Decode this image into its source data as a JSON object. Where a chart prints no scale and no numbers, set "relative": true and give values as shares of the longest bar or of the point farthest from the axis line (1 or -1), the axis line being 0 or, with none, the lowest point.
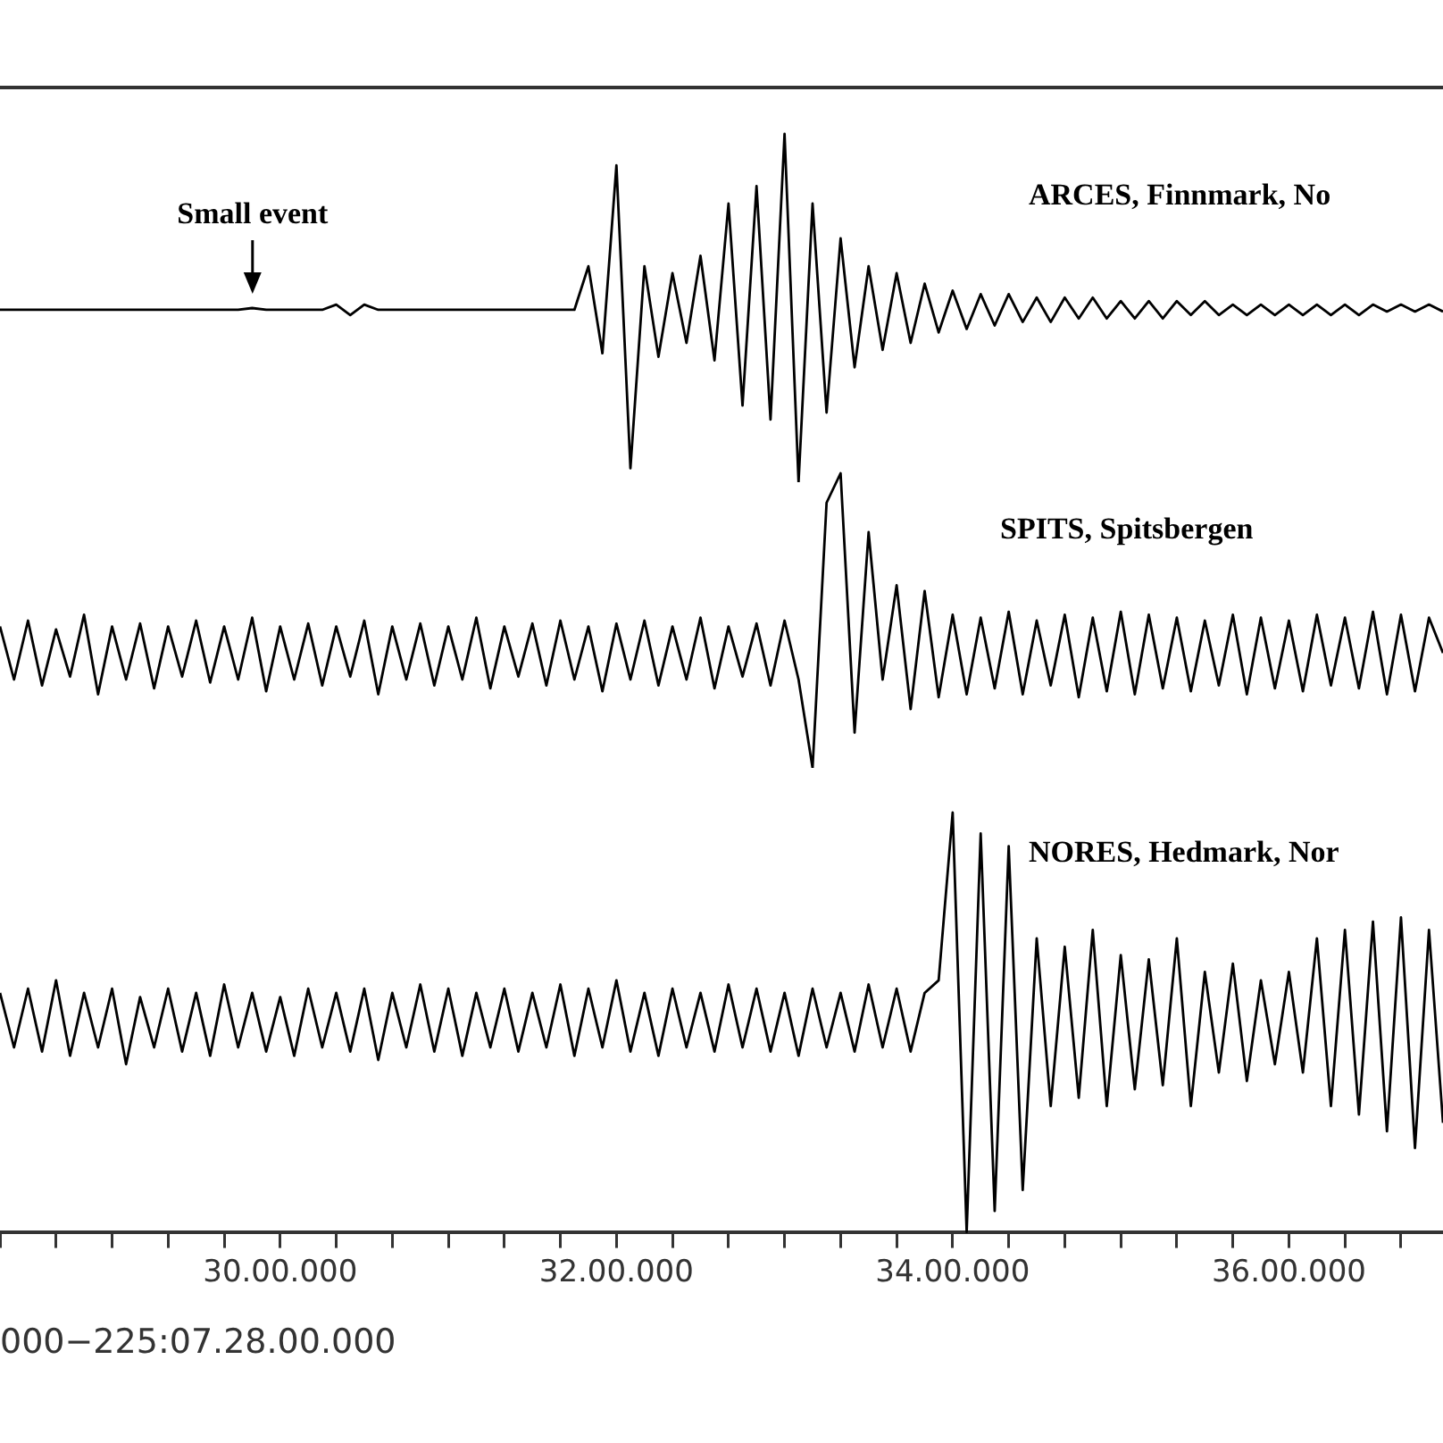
{
  "chart_data": [
    {
      "type": "line",
      "relative": true,
      "tick_labels": false,
      "legend": false,
      "grid": false,
      "marker": "none",
      "annotations": [
        "Small event"
      ],
      "categories": [
        null,
        null,
        null,
        null,
        null,
        null,
        null,
        null,
        null,
        null,
        null,
        null,
        null,
        null,
        null,
        null,
        null,
        null,
        null,
        null,
        "30.00.000",
        null,
        null,
        null,
        null,
        null,
        null,
        null,
        null,
        null,
        null,
        null,
        null,
        null,
        null,
        null,
        null,
        null,
        null,
        null,
        null,
        null,
        null,
        null,
        "32.00.000",
        null,
        null,
        null,
        null,
        null,
        null,
        null,
        null,
        null,
        null,
        null,
        null,
        null,
        null,
        null,
        null,
        null,
        null,
        null,
        null,
        null,
        null,
        null,
        "34.00.000",
        null,
        null,
        null,
        null,
        null,
        null,
        null,
        null,
        null,
        null,
        null,
        null,
        null,
        null,
        null,
        null,
        null,
        null,
        null,
        null,
        null,
        null,
        null,
        "36.00.000",
        null,
        null,
        null,
        null,
        null,
        null,
        null,
        null,
        null,
        null,
        null
      ],
      "series": [
        {
          "name": "ARCES, Finnmark, No",
          "color": "#000000",
          "values": [
            0.495,
            0.495,
            0.495,
            0.495,
            0.495,
            0.495,
            0.495,
            0.495,
            0.495,
            0.495,
            0.495,
            0.495,
            0.495,
            0.495,
            0.495,
            0.495,
            0.495,
            0.495,
            0.5,
            0.495,
            0.495,
            0.495,
            0.495,
            0.495,
            0.51,
            0.48,
            0.51,
            0.495,
            0.495,
            0.495,
            0.495,
            0.495,
            0.495,
            0.495,
            0.495,
            0.495,
            0.495,
            0.495,
            0.495,
            0.495,
            0.495,
            0.495,
            0.62,
            0.37,
            0.91,
            0.04,
            0.62,
            0.36,
            0.6,
            0.4,
            0.65,
            0.35,
            0.8,
            0.22,
            0.85,
            0.18,
            1.0,
            0.0,
            0.8,
            0.2,
            0.7,
            0.33,
            0.62,
            0.38,
            0.6,
            0.4,
            0.57,
            0.43,
            0.55,
            0.44,
            0.54,
            0.45,
            0.54,
            0.46,
            0.53,
            0.46,
            0.53,
            0.47,
            0.53,
            0.47,
            0.52,
            0.47,
            0.52,
            0.47,
            0.52,
            0.48,
            0.52,
            0.48,
            0.51,
            0.48,
            0.51,
            0.48,
            0.51,
            0.48,
            0.51,
            0.48,
            0.51,
            0.48,
            0.51,
            0.49,
            0.51,
            0.49,
            0.51,
            0.49
          ]
        }
      ]
    },
    {
      "type": "line",
      "relative": true,
      "tick_labels": false,
      "legend": false,
      "grid": false,
      "marker": "none",
      "categories": [
        null,
        null,
        null,
        null,
        null,
        null,
        null,
        null,
        null,
        null,
        null,
        null,
        null,
        null,
        null,
        null,
        null,
        null,
        null,
        null,
        "30.00.000",
        null,
        null,
        null,
        null,
        null,
        null,
        null,
        null,
        null,
        null,
        null,
        null,
        null,
        null,
        null,
        null,
        null,
        null,
        null,
        null,
        null,
        null,
        null,
        "32.00.000",
        null,
        null,
        null,
        null,
        null,
        null,
        null,
        null,
        null,
        null,
        null,
        null,
        null,
        null,
        null,
        null,
        null,
        null,
        null,
        null,
        null,
        null,
        null,
        "34.00.000",
        null,
        null,
        null,
        null,
        null,
        null,
        null,
        null,
        null,
        null,
        null,
        null,
        null,
        null,
        null,
        null,
        null,
        null,
        null,
        null,
        null,
        null,
        null,
        "36.00.000",
        null,
        null,
        null,
        null,
        null,
        null,
        null,
        null,
        null,
        null,
        null
      ],
      "series": [
        {
          "name": "SPITS, Spitsbergen",
          "color": "#000000",
          "values": [
            0.48,
            0.3,
            0.5,
            0.28,
            0.47,
            0.31,
            0.52,
            0.25,
            0.48,
            0.3,
            0.49,
            0.27,
            0.48,
            0.31,
            0.5,
            0.29,
            0.48,
            0.3,
            0.51,
            0.26,
            0.48,
            0.3,
            0.49,
            0.28,
            0.48,
            0.31,
            0.5,
            0.25,
            0.48,
            0.3,
            0.49,
            0.28,
            0.48,
            0.3,
            0.51,
            0.27,
            0.48,
            0.31,
            0.49,
            0.28,
            0.5,
            0.3,
            0.48,
            0.26,
            0.49,
            0.3,
            0.5,
            0.28,
            0.48,
            0.3,
            0.51,
            0.27,
            0.48,
            0.31,
            0.49,
            0.28,
            0.5,
            0.3,
            0.0,
            0.9,
            1.0,
            0.12,
            0.8,
            0.3,
            0.62,
            0.2,
            0.6,
            0.24,
            0.52,
            0.25,
            0.51,
            0.27,
            0.53,
            0.25,
            0.5,
            0.28,
            0.52,
            0.24,
            0.51,
            0.26,
            0.53,
            0.25,
            0.52,
            0.27,
            0.51,
            0.26,
            0.5,
            0.28,
            0.52,
            0.25,
            0.51,
            0.27,
            0.5,
            0.26,
            0.52,
            0.28,
            0.51,
            0.27,
            0.53,
            0.25,
            0.52,
            0.26,
            0.51,
            0.39
          ]
        }
      ]
    },
    {
      "type": "line",
      "relative": true,
      "legend": false,
      "grid": false,
      "marker": "none",
      "xlabel": "000−225:07.28.00.000",
      "categories": [
        null,
        null,
        null,
        null,
        null,
        null,
        null,
        null,
        null,
        null,
        null,
        null,
        null,
        null,
        null,
        null,
        null,
        null,
        null,
        null,
        "30.00.000",
        null,
        null,
        null,
        null,
        null,
        null,
        null,
        null,
        null,
        null,
        null,
        null,
        null,
        null,
        null,
        null,
        null,
        null,
        null,
        null,
        null,
        null,
        null,
        "32.00.000",
        null,
        null,
        null,
        null,
        null,
        null,
        null,
        null,
        null,
        null,
        null,
        null,
        null,
        null,
        null,
        null,
        null,
        null,
        null,
        null,
        null,
        null,
        null,
        "34.00.000",
        null,
        null,
        null,
        null,
        null,
        null,
        null,
        null,
        null,
        null,
        null,
        null,
        null,
        null,
        null,
        null,
        null,
        null,
        null,
        null,
        null,
        null,
        null,
        "36.00.000",
        null,
        null,
        null,
        null,
        null,
        null,
        null,
        null,
        null,
        null,
        null
      ],
      "series": [
        {
          "name": "NORES, Hedmark, Nor",
          "color": "#000000",
          "values": [
            0.57,
            0.44,
            0.58,
            0.43,
            0.6,
            0.42,
            0.57,
            0.44,
            0.58,
            0.4,
            0.56,
            0.44,
            0.58,
            0.43,
            0.57,
            0.42,
            0.59,
            0.44,
            0.57,
            0.43,
            0.56,
            0.42,
            0.58,
            0.44,
            0.57,
            0.43,
            0.58,
            0.41,
            0.57,
            0.44,
            0.59,
            0.43,
            0.58,
            0.42,
            0.57,
            0.44,
            0.58,
            0.43,
            0.57,
            0.44,
            0.59,
            0.42,
            0.58,
            0.44,
            0.6,
            0.43,
            0.57,
            0.42,
            0.58,
            0.44,
            0.57,
            0.43,
            0.59,
            0.44,
            0.58,
            0.43,
            0.57,
            0.42,
            0.58,
            0.44,
            0.57,
            0.43,
            0.59,
            0.44,
            0.58,
            0.43,
            0.57,
            0.6,
            1.0,
            0.0,
            0.95,
            0.05,
            0.92,
            0.1,
            0.7,
            0.3,
            0.68,
            0.32,
            0.72,
            0.3,
            0.66,
            0.34,
            0.65,
            0.35,
            0.7,
            0.3,
            0.62,
            0.38,
            0.64,
            0.36,
            0.6,
            0.4,
            0.62,
            0.38,
            0.7,
            0.3,
            0.72,
            0.28,
            0.74,
            0.24,
            0.75,
            0.2,
            0.72,
            0.26
          ]
        }
      ]
    }
  ]
}
